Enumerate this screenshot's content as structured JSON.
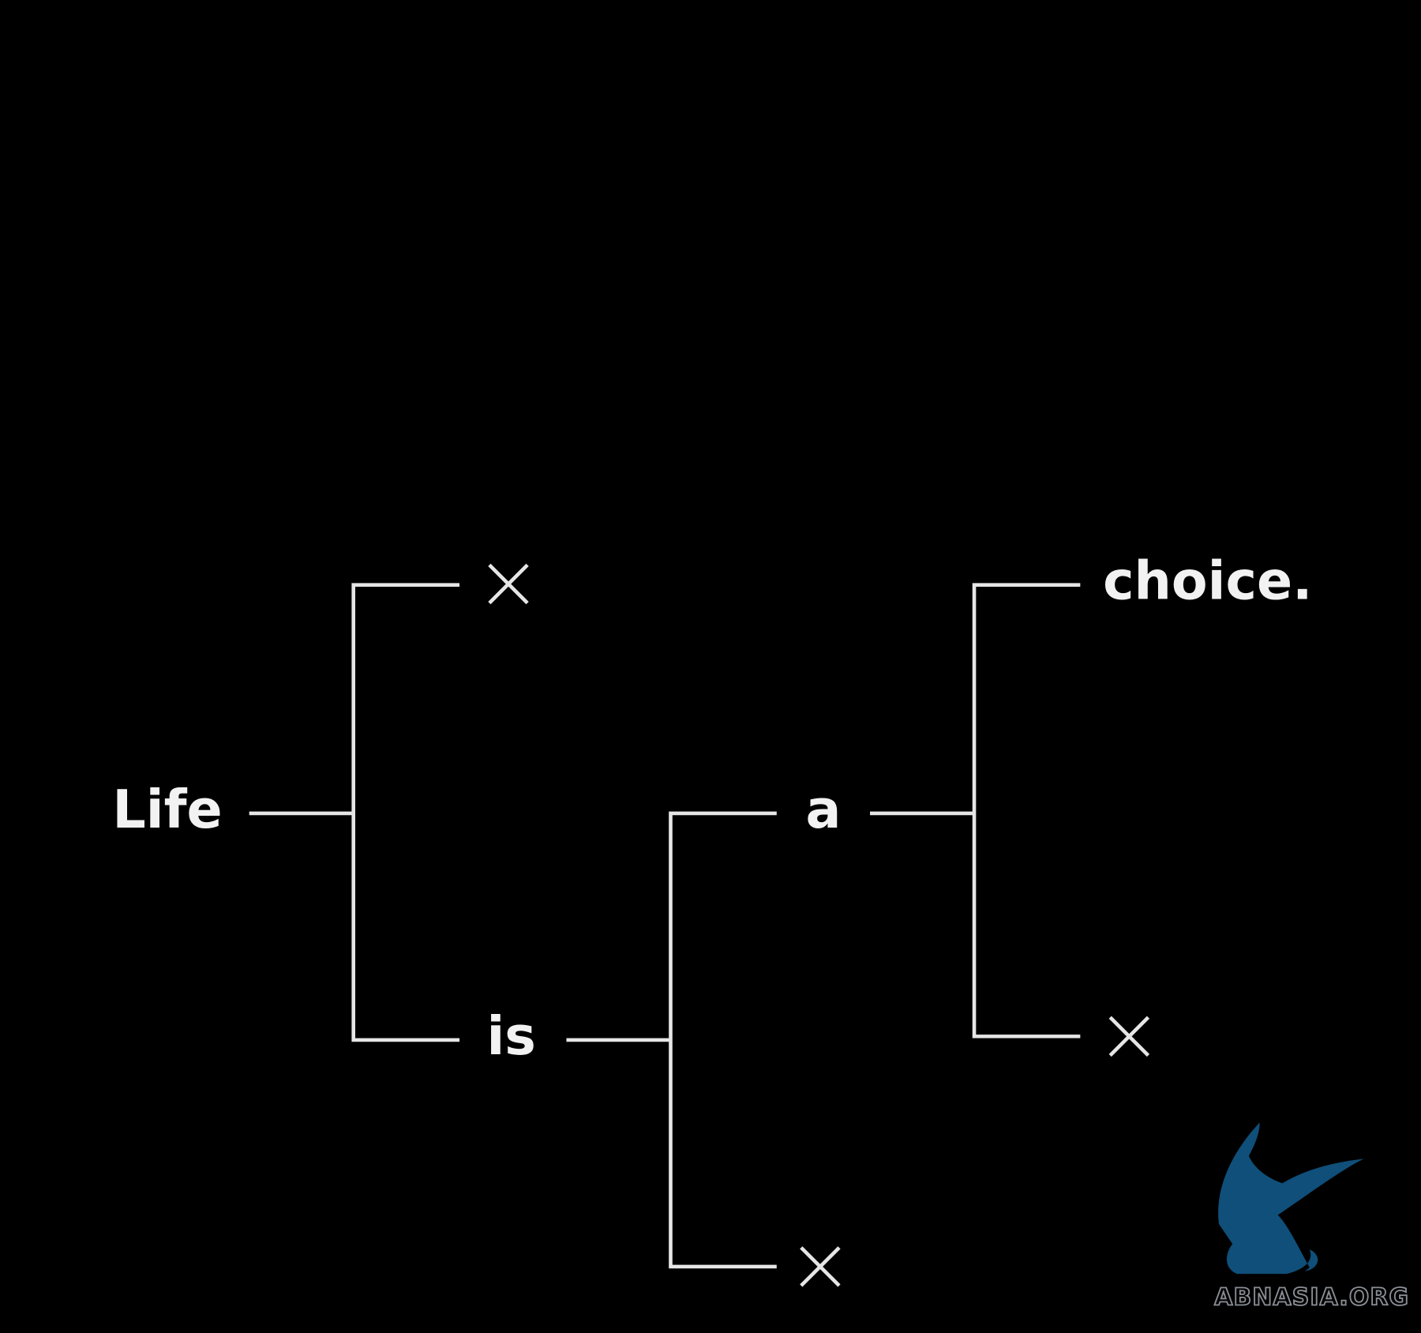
{
  "nodes": {
    "root": "Life",
    "second": "is",
    "third": "a",
    "fourth": "choice."
  },
  "watermark": "ABNASIA.ORG"
}
